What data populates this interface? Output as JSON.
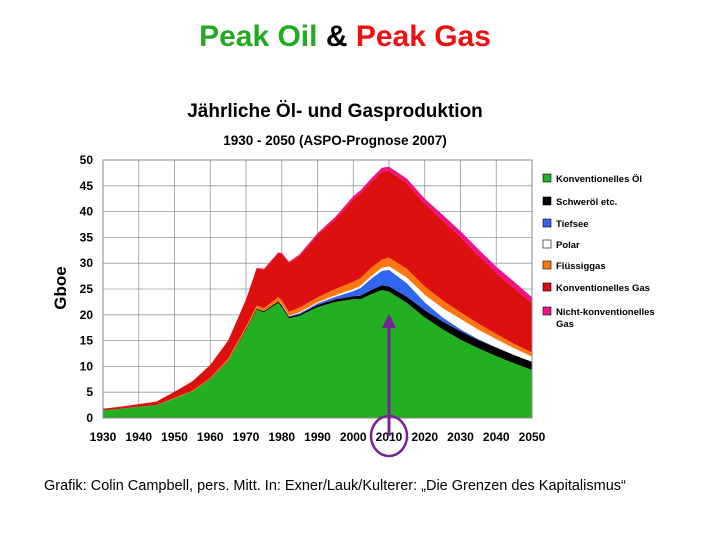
{
  "headline": {
    "part1": "Peak Oil",
    "amp": "&",
    "part2": "Peak Gas"
  },
  "credit": "Grafik: Colin Campbell, pers. Mitt. In: Exner/Lauk/Kulterer: „Die Grenzen des Kapitalismus“",
  "chart_data": {
    "type": "area",
    "stacked": true,
    "title": "Jährliche Öl- und Gasproduktion",
    "subtitle": "1930 - 2050 (ASPO-Prognose 2007)",
    "xlabel": "",
    "ylabel": "Gboe",
    "xlim": [
      1930,
      2050
    ],
    "ylim": [
      0,
      50
    ],
    "grid": true,
    "legend_position": "right",
    "x_ticks": [
      1930,
      1940,
      1950,
      1960,
      1970,
      1980,
      1990,
      2000,
      2010,
      2020,
      2030,
      2040,
      2050
    ],
    "y_ticks": [
      0,
      5,
      10,
      15,
      20,
      25,
      30,
      35,
      40,
      45,
      50
    ],
    "x": [
      1930,
      1935,
      1940,
      1945,
      1950,
      1955,
      1960,
      1965,
      1970,
      1973,
      1975,
      1979,
      1980,
      1982,
      1985,
      1990,
      1995,
      2000,
      2002,
      2005,
      2008,
      2010,
      2015,
      2020,
      2025,
      2030,
      2035,
      2040,
      2045,
      2050
    ],
    "series": [
      {
        "name": "Konventionelles Öl",
        "color": "#22b022",
        "values": [
          1.5,
          1.8,
          2.2,
          2.5,
          3.8,
          5.2,
          7.5,
          11.0,
          17.0,
          21.0,
          20.5,
          22.3,
          21.5,
          19.3,
          19.8,
          21.5,
          22.5,
          23.0,
          23.0,
          24.0,
          24.8,
          24.5,
          22.3,
          19.5,
          17.2,
          15.2,
          13.5,
          12.0,
          10.6,
          9.3
        ]
      },
      {
        "name": "Schweröl etc.",
        "color": "#000000",
        "values": [
          0,
          0,
          0,
          0,
          0,
          0,
          0.1,
          0.1,
          0.2,
          0.2,
          0.2,
          0.3,
          0.3,
          0.3,
          0.3,
          0.4,
          0.5,
          0.6,
          0.7,
          0.8,
          0.9,
          1.0,
          1.2,
          1.4,
          1.5,
          1.6,
          1.6,
          1.6,
          1.6,
          1.6
        ]
      },
      {
        "name": "Tiefsee",
        "color": "#3366ee",
        "values": [
          0,
          0,
          0,
          0,
          0,
          0,
          0,
          0,
          0,
          0,
          0,
          0,
          0.1,
          0.1,
          0.2,
          0.3,
          0.5,
          1.0,
          1.5,
          2.2,
          2.8,
          3.2,
          2.6,
          1.5,
          0.8,
          0.4,
          0.2,
          0.1,
          0,
          0
        ]
      },
      {
        "name": "Polar",
        "color": "#ffffff",
        "values": [
          0,
          0,
          0,
          0,
          0,
          0,
          0,
          0,
          0,
          0,
          0,
          0,
          0.1,
          0.1,
          0.2,
          0.2,
          0.3,
          0.4,
          0.4,
          0.5,
          0.6,
          0.7,
          1.1,
          1.5,
          1.8,
          2.0,
          1.8,
          1.6,
          1.3,
          1.0
        ]
      },
      {
        "name": "Flüssiggas",
        "color": "#ff7711",
        "values": [
          0,
          0,
          0,
          0,
          0.1,
          0.1,
          0.2,
          0.4,
          0.5,
          0.6,
          0.6,
          0.8,
          0.8,
          0.8,
          0.9,
          1.0,
          1.2,
          1.4,
          1.5,
          1.6,
          1.6,
          1.7,
          1.7,
          1.6,
          1.5,
          1.3,
          1.2,
          1.0,
          0.9,
          0.8
        ]
      },
      {
        "name": "Konventionelles Gas",
        "color": "#dd0f0f",
        "values": [
          0.3,
          0.4,
          0.5,
          0.7,
          1.2,
          1.8,
          2.5,
          3.5,
          5.2,
          7.2,
          7.5,
          8.5,
          9.0,
          9.5,
          10.0,
          12.0,
          13.5,
          16.0,
          16.4,
          16.6,
          17.0,
          16.8,
          16.6,
          16.0,
          15.5,
          14.5,
          13.2,
          11.8,
          10.8,
          9.5
        ]
      },
      {
        "name": "Nicht-konventionelles Gas",
        "color": "#ee1188",
        "values": [
          0,
          0,
          0,
          0,
          0,
          0,
          0,
          0,
          0.1,
          0.1,
          0.1,
          0.2,
          0.2,
          0.2,
          0.3,
          0.4,
          0.5,
          0.6,
          0.6,
          0.7,
          0.8,
          0.8,
          0.9,
          1.0,
          1.1,
          1.2,
          1.2,
          1.2,
          1.2,
          1.2
        ]
      }
    ],
    "annotations": [
      "2010"
    ]
  }
}
